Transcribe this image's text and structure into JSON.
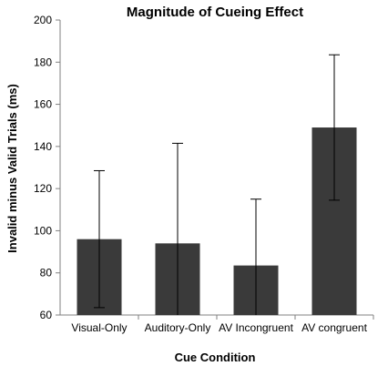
{
  "chart_data": {
    "type": "bar",
    "title": "Magnitude of Cueing Effect",
    "xlabel": "Cue Condition",
    "ylabel": "Invalid minus Valid Trials (ms)",
    "ylim": [
      60,
      200
    ],
    "yticks": [
      60,
      80,
      100,
      120,
      140,
      160,
      180,
      200
    ],
    "grid": false,
    "categories": [
      "Visual-Only",
      "Auditory-Only",
      "AV Incongruent",
      "AV congruent"
    ],
    "values": [
      96,
      94,
      83.5,
      149
    ],
    "error_low": [
      63.5,
      60,
      60,
      114.5
    ],
    "error_high": [
      128.5,
      141.5,
      115,
      183.5
    ],
    "colors": {
      "bar": "#3a3a3a",
      "axis": "#808080"
    }
  }
}
